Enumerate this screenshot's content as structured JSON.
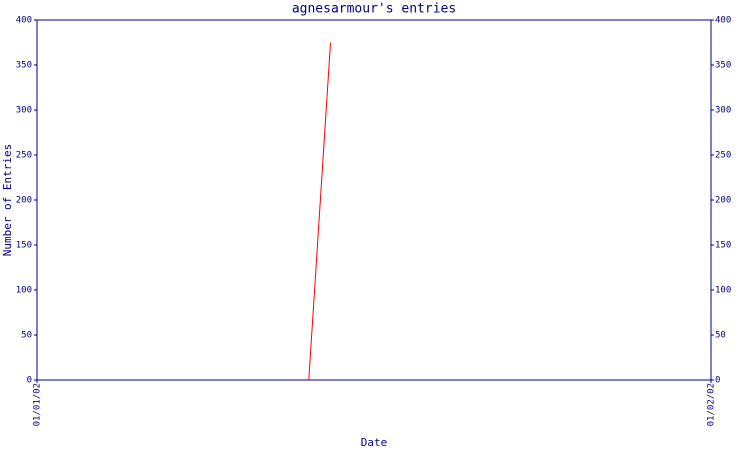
{
  "chart_data": {
    "type": "line",
    "title": "agnesarmour's entries",
    "xlabel": "Date",
    "ylabel": "Number of Entries",
    "x": [
      12.5,
      13.5
    ],
    "values": [
      0,
      375
    ],
    "color": "#ff0000",
    "xlim": [
      0,
      31
    ],
    "xticks": [
      {
        "value": 0,
        "label": "01/01/02"
      },
      {
        "value": 31,
        "label": "01/02/02"
      }
    ],
    "ylim": [
      0,
      400
    ],
    "yticks": [
      0,
      50,
      100,
      150,
      200,
      250,
      300,
      350,
      400
    ],
    "y2lim": [
      0,
      400
    ],
    "y2ticks": [
      0,
      50,
      100,
      150,
      200,
      250,
      300,
      350,
      400
    ],
    "axis_color": "#000080"
  }
}
